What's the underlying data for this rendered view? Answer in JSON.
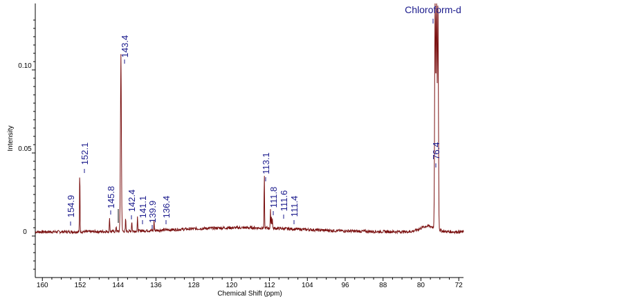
{
  "chart_data": {
    "type": "line",
    "title": "",
    "xlabel": "Chemical Shift (ppm)",
    "ylabel": "Intensity",
    "x_reversed": true,
    "xlim": [
      161.5,
      71
    ],
    "ylim": [
      -0.025,
      0.14
    ],
    "x_ticks": [
      160,
      152,
      144,
      136,
      128,
      120,
      112,
      104,
      96,
      88,
      80,
      72
    ],
    "y_ticks": [
      0,
      0.05,
      0.1
    ],
    "y_tick_labels": [
      "0",
      "0.05",
      "0.10"
    ],
    "baseline": 0.0025,
    "peaks": [
      {
        "x": 152.1,
        "y": 0.04
      },
      {
        "x": 145.8,
        "y": 0.0115
      },
      {
        "x": 144.4,
        "y": 0.006
      },
      {
        "x": 143.4,
        "y": 0.109
      },
      {
        "x": 142.4,
        "y": 0.0105
      },
      {
        "x": 141.1,
        "y": 0.009
      },
      {
        "x": 139.9,
        "y": 0.0105
      },
      {
        "x": 136.4,
        "y": 0.0085
      },
      {
        "x": 113.1,
        "y": 0.035
      },
      {
        "x": 111.8,
        "y": 0.0135
      },
      {
        "x": 111.6,
        "y": 0.0095
      },
      {
        "x": 111.4,
        "y": 0.009
      },
      {
        "x": 77.0,
        "y": 0.14
      },
      {
        "x": 76.7,
        "y": 0.14
      },
      {
        "x": 76.4,
        "y": 0.14
      }
    ],
    "labels": [
      {
        "text": "154.9",
        "x": 154.9
      },
      {
        "text": "152.1",
        "x": 152.1
      },
      {
        "text": "145.8",
        "x": 145.8
      },
      {
        "text": "143.4",
        "x": 143.4
      },
      {
        "text": "142.4",
        "x": 142.4
      },
      {
        "text": "141.1",
        "x": 141.1
      },
      {
        "text": "139.9",
        "x": 139.9
      },
      {
        "text": "136.4",
        "x": 136.4
      },
      {
        "text": "113.1",
        "x": 113.1
      },
      {
        "text": "111.8",
        "x": 111.8
      },
      {
        "text": "111.6",
        "x": 111.6
      },
      {
        "text": "111.4",
        "x": 111.4
      },
      {
        "text": "76.4",
        "x": 76.4
      }
    ],
    "annotation": "Chloroform-d",
    "colors": {
      "spectrum": "#7a1010",
      "labels": "#1a1a8c",
      "axis": "#000000"
    }
  }
}
